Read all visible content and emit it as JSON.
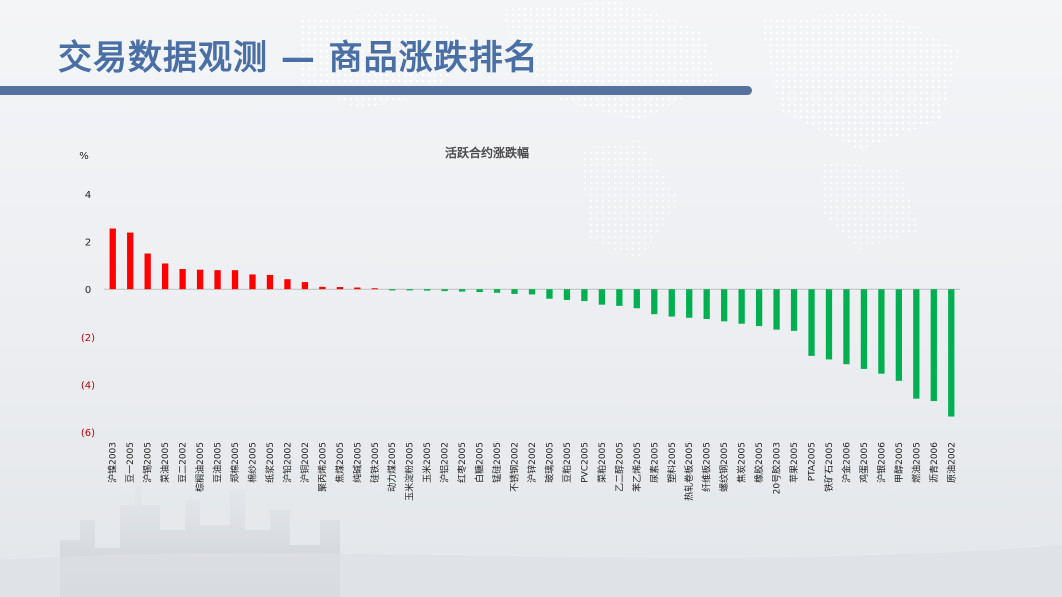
{
  "page": {
    "title": "交易数据观测 — 商品涨跌排名"
  },
  "colors": {
    "positive": "#ff0000",
    "negative": "#00b050",
    "negative_label": "#c00000",
    "title": "#4a6fa5",
    "rule": "#54729d"
  },
  "chart_data": {
    "type": "bar",
    "title": "活跃合约涨跌幅",
    "ylabel": "%",
    "xlabel": "",
    "ylim": [
      -6,
      4
    ],
    "yticks": [
      4,
      2,
      0,
      -2,
      -4,
      -6
    ],
    "ytick_labels": [
      "4",
      "2",
      "0",
      "(2)",
      "(4)",
      "(6)"
    ],
    "grid": false,
    "legend": "none",
    "categories": [
      "沪镍2003",
      "豆一2005",
      "沪锡2005",
      "菜油2005",
      "豆二2002",
      "棕榈油2005",
      "豆油2005",
      "郑棉2005",
      "棉纱2005",
      "纸浆2005",
      "沪铅2002",
      "沪铜2002",
      "聚丙烯2005",
      "焦煤2005",
      "纯碱2005",
      "硅铁2005",
      "动力煤2005",
      "玉米淀粉2005",
      "玉米2005",
      "沪铝2002",
      "红枣2005",
      "白糖2005",
      "锰硅2005",
      "不锈钢2002",
      "沪锌2002",
      "玻璃2005",
      "豆粕2005",
      "PVC2005",
      "菜粕2005",
      "乙二醇2005",
      "苯乙烯2005",
      "尿素2005",
      "塑料2005",
      "热轧卷板2005",
      "纤维板2005",
      "螺纹钢2005",
      "焦炭2005",
      "橡胶2005",
      "20号胶2003",
      "苹果2005",
      "PTA2005",
      "铁矿石2005",
      "沪金2006",
      "鸡蛋2005",
      "沪银2006",
      "甲醇2005",
      "燃油2005",
      "沥青2006",
      "原油2002"
    ],
    "values": [
      2.55,
      2.38,
      1.5,
      1.08,
      0.85,
      0.82,
      0.8,
      0.8,
      0.62,
      0.6,
      0.42,
      0.3,
      0.1,
      0.09,
      0.07,
      0.04,
      -0.05,
      -0.05,
      -0.06,
      -0.08,
      -0.1,
      -0.12,
      -0.15,
      -0.2,
      -0.22,
      -0.4,
      -0.45,
      -0.5,
      -0.65,
      -0.7,
      -0.8,
      -1.05,
      -1.15,
      -1.2,
      -1.25,
      -1.35,
      -1.45,
      -1.55,
      -1.7,
      -1.75,
      -2.8,
      -2.95,
      -3.15,
      -3.35,
      -3.55,
      -3.85,
      -4.6,
      -4.7,
      -5.35
    ]
  }
}
